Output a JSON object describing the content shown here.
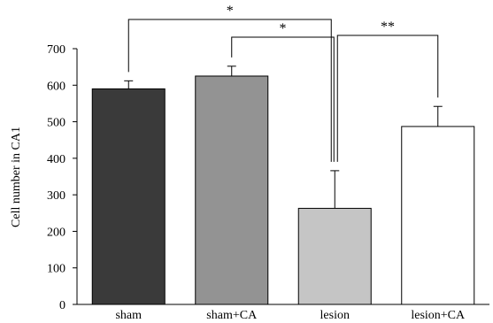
{
  "chart_data": {
    "type": "bar",
    "ylabel": "Cell number in CA1",
    "ylim": [
      0,
      700
    ],
    "yticks": [
      0,
      100,
      200,
      300,
      400,
      500,
      600,
      700
    ],
    "categories": [
      "sham",
      "sham+CA",
      "lesion",
      "lesion+CA"
    ],
    "values": [
      590,
      625,
      263,
      487
    ],
    "errors": [
      22,
      27,
      103,
      55
    ],
    "colors": [
      "#3a3a3a",
      "#939393",
      "#c5c5c5",
      "#ffffff"
    ],
    "grid": false,
    "significance": [
      {
        "from": 0,
        "to": 2,
        "label": "*"
      },
      {
        "from": 1,
        "to": 2,
        "label": "*"
      },
      {
        "from": 2,
        "to": 3,
        "label": "**"
      }
    ]
  }
}
